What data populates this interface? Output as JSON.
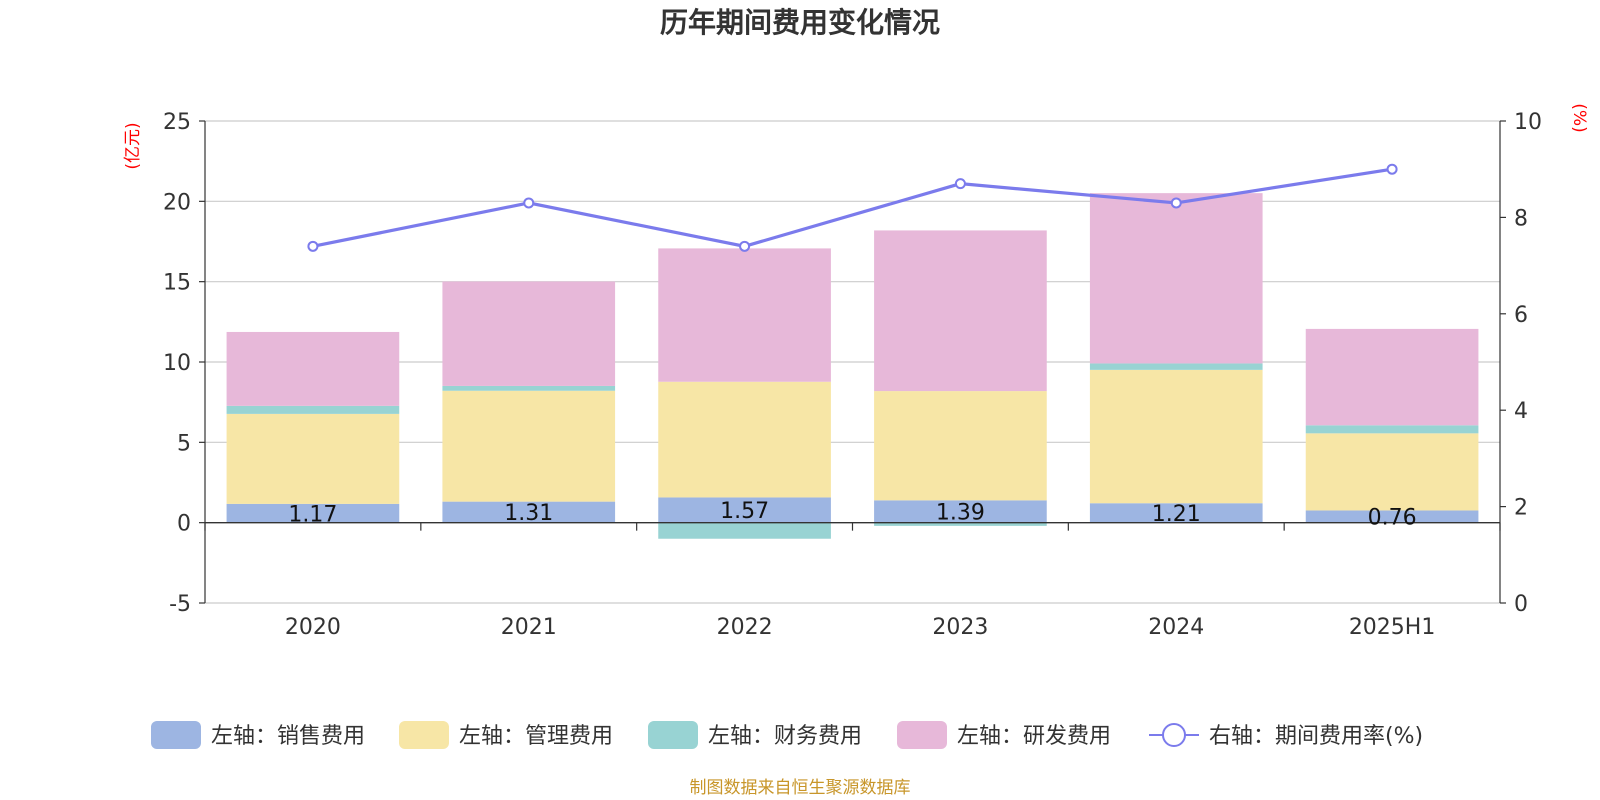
{
  "chart_data": {
    "type": "bar",
    "title": "历年期间费用变化情况",
    "categories": [
      "2020",
      "2021",
      "2022",
      "2023",
      "2024",
      "2025H1"
    ],
    "left_axis": {
      "unit_label": "(亿元)",
      "ylim": [
        -5,
        25
      ],
      "ticks": [
        "-5",
        "0",
        "5",
        "10",
        "15",
        "20",
        "25"
      ]
    },
    "right_axis": {
      "unit_label": "(%)",
      "ylim": [
        0,
        10
      ],
      "ticks": [
        "0",
        "2",
        "4",
        "6",
        "8",
        "10"
      ]
    },
    "stacked": true,
    "grid": true,
    "legend_position": "bottom",
    "series": [
      {
        "name": "左轴：销售费用",
        "kind": "bar",
        "axis": "left",
        "color": "#9db5e2",
        "values": [
          1.17,
          1.31,
          1.57,
          1.39,
          1.21,
          0.76
        ],
        "labels": [
          "1.17",
          "1.31",
          "1.57",
          "1.39",
          "1.21",
          "0.76"
        ]
      },
      {
        "name": "左轴：管理费用",
        "kind": "bar",
        "axis": "left",
        "color": "#f7e6a6",
        "values": [
          5.6,
          6.9,
          7.2,
          6.8,
          8.3,
          4.8
        ]
      },
      {
        "name": "左轴：财务费用",
        "kind": "bar",
        "axis": "left",
        "color": "#98d3d3",
        "values": [
          0.5,
          0.3,
          -1.0,
          -0.2,
          0.4,
          0.5
        ]
      },
      {
        "name": "左轴：研发费用",
        "kind": "bar",
        "axis": "left",
        "color": "#e7b8d9",
        "values": [
          4.6,
          6.5,
          8.3,
          10.0,
          10.6,
          6.0
        ]
      },
      {
        "name": "右轴：期间费用率(%)",
        "kind": "line",
        "axis": "right",
        "color": "#7b7bec",
        "values": [
          7.4,
          8.3,
          7.4,
          8.7,
          8.3,
          9.0
        ]
      }
    ],
    "source": "制图数据来自恒生聚源数据库"
  }
}
